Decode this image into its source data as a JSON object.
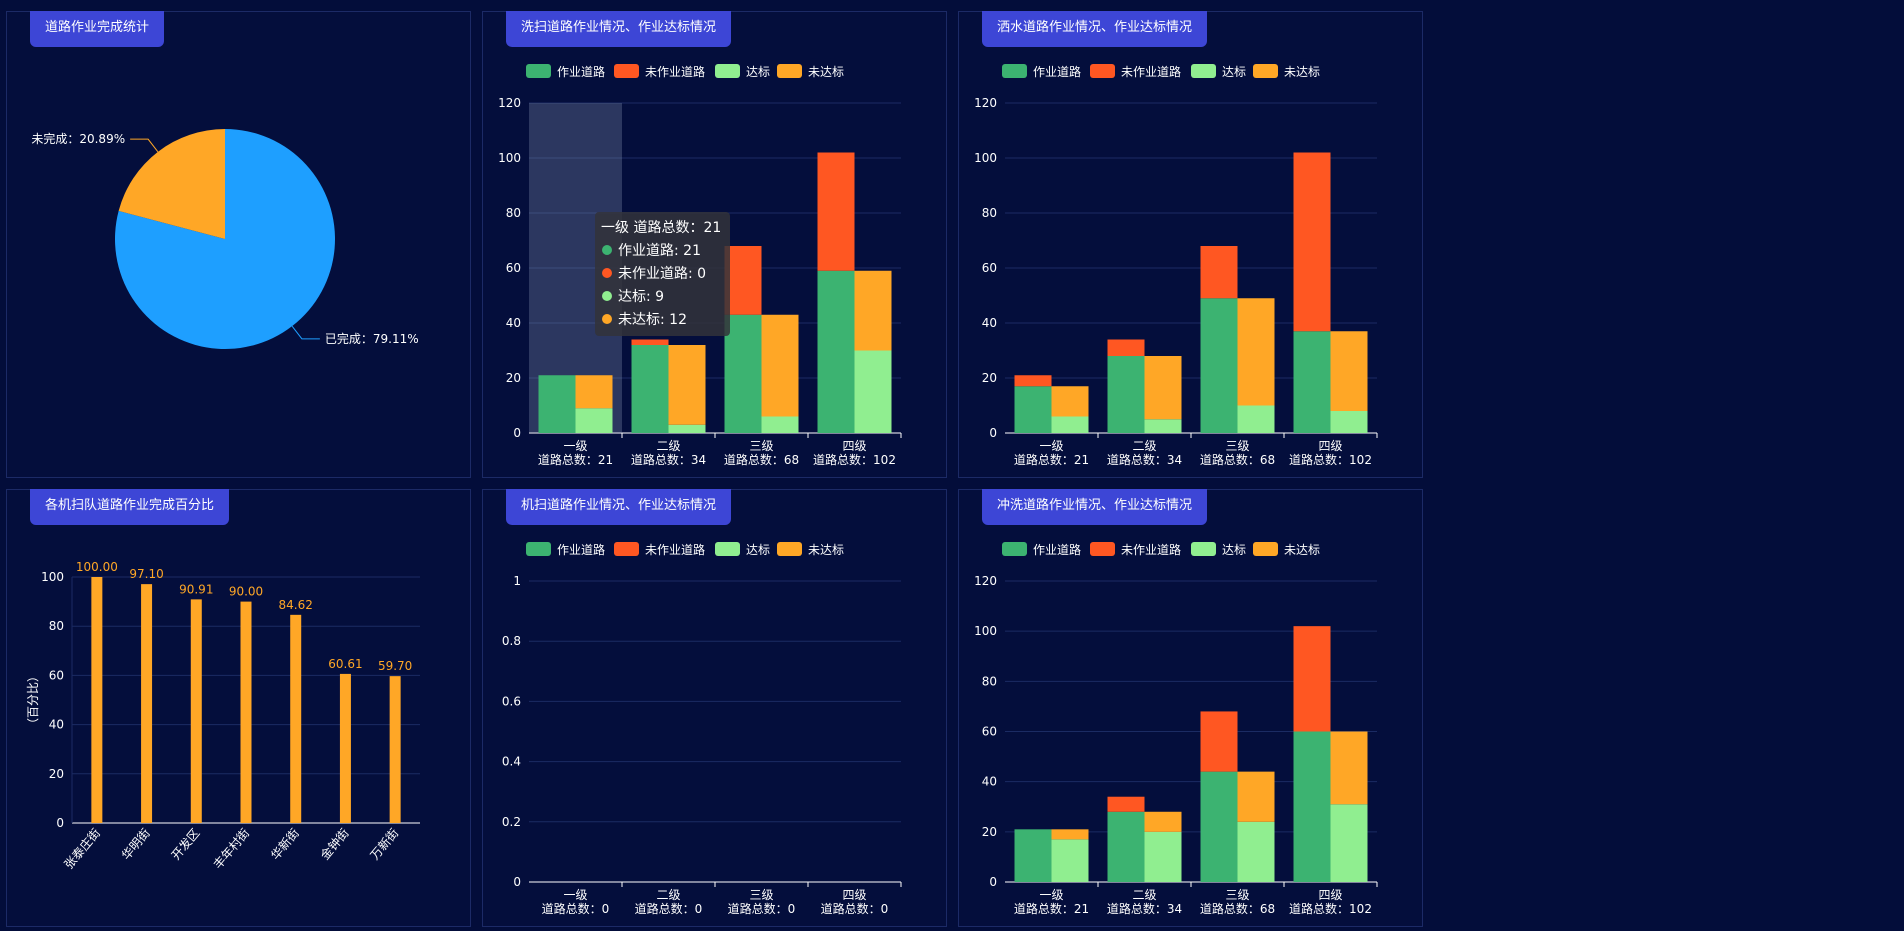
{
  "colors": {
    "work": "#3cb371",
    "nowork": "#ff5722",
    "pass": "#90ee90",
    "fail": "#ffa726",
    "pie_done": "#1e9fff",
    "pie_undone": "#ffa726",
    "axis": "#ffffff",
    "grid": "#1b2b63"
  },
  "legend": [
    "作业道路",
    "未作业道路",
    "达标",
    "未达标"
  ],
  "chart_data": [
    {
      "id": "pie",
      "type": "pie",
      "title": "道路作业完成统计",
      "slices": [
        {
          "name": "已完成",
          "value": 79.11,
          "label": "已完成：79.11%"
        },
        {
          "name": "未完成",
          "value": 20.89,
          "label": "未完成：20.89%"
        }
      ]
    },
    {
      "id": "sweep",
      "type": "bar",
      "title": "洗扫道路作业情况、作业达标情况",
      "categories": [
        "一级",
        "二级",
        "三级",
        "四级"
      ],
      "category_sub": [
        "道路总数：21",
        "道路总数：34",
        "道路总数：68",
        "道路总数：102"
      ],
      "ylim": [
        0,
        120
      ],
      "yticks": [
        "0",
        "20",
        "40",
        "60",
        "80",
        "100",
        "120"
      ],
      "stacks": [
        {
          "series": [
            {
              "name": "作业道路",
              "values": [
                21,
                32,
                43,
                59
              ]
            },
            {
              "name": "未作业道路",
              "values": [
                0,
                2,
                25,
                43
              ]
            }
          ]
        },
        {
          "series": [
            {
              "name": "达标",
              "values": [
                9,
                3,
                6,
                30
              ]
            },
            {
              "name": "未达标",
              "values": [
                12,
                29,
                37,
                29
              ]
            }
          ]
        }
      ],
      "highlight_index": 0,
      "tooltip": {
        "header": "一级 道路总数：21",
        "rows": [
          "作业道路: 21",
          "未作业道路: 0",
          "达标: 9",
          "未达标: 12"
        ]
      }
    },
    {
      "id": "water",
      "type": "bar",
      "title": "洒水道路作业情况、作业达标情况",
      "categories": [
        "一级",
        "二级",
        "三级",
        "四级"
      ],
      "category_sub": [
        "道路总数：21",
        "道路总数：34",
        "道路总数：68",
        "道路总数：102"
      ],
      "ylim": [
        0,
        120
      ],
      "yticks": [
        "0",
        "20",
        "40",
        "60",
        "80",
        "100",
        "120"
      ],
      "stacks": [
        {
          "series": [
            {
              "name": "作业道路",
              "values": [
                17,
                28,
                49,
                37
              ]
            },
            {
              "name": "未作业道路",
              "values": [
                4,
                6,
                19,
                65
              ]
            }
          ]
        },
        {
          "series": [
            {
              "name": "达标",
              "values": [
                6,
                5,
                10,
                8
              ]
            },
            {
              "name": "未达标",
              "values": [
                11,
                23,
                39,
                29
              ]
            }
          ]
        }
      ]
    },
    {
      "id": "team",
      "type": "bar",
      "title": "各机扫队道路作业完成百分比",
      "categories": [
        "张泰庄街",
        "华明街",
        "开发区",
        "丰年村街",
        "华新街",
        "金钟街",
        "万新街"
      ],
      "values": [
        100.0,
        97.1,
        90.91,
        90.0,
        84.62,
        60.61,
        59.7
      ],
      "value_labels": [
        "100.00",
        "97.10",
        "90.91",
        "90.00",
        "84.62",
        "60.61",
        "59.70"
      ],
      "ylabel": "（百分比）",
      "ylim": [
        0,
        100
      ],
      "yticks": [
        "0",
        "20",
        "40",
        "60",
        "80",
        "100"
      ]
    },
    {
      "id": "machine",
      "type": "bar",
      "title": "机扫道路作业情况、作业达标情况",
      "categories": [
        "一级",
        "二级",
        "三级",
        "四级"
      ],
      "category_sub": [
        "道路总数：0",
        "道路总数：0",
        "道路总数：0",
        "道路总数：0"
      ],
      "ylim": [
        0,
        1
      ],
      "yticks": [
        "0",
        "0.2",
        "0.4",
        "0.6",
        "0.8",
        "1"
      ],
      "stacks": [
        {
          "series": [
            {
              "name": "作业道路",
              "values": [
                0,
                0,
                0,
                0
              ]
            },
            {
              "name": "未作业道路",
              "values": [
                0,
                0,
                0,
                0
              ]
            }
          ]
        },
        {
          "series": [
            {
              "name": "达标",
              "values": [
                0,
                0,
                0,
                0
              ]
            },
            {
              "name": "未达标",
              "values": [
                0,
                0,
                0,
                0
              ]
            }
          ]
        }
      ]
    },
    {
      "id": "flush",
      "type": "bar",
      "title": "冲洗道路作业情况、作业达标情况",
      "categories": [
        "一级",
        "二级",
        "三级",
        "四级"
      ],
      "category_sub": [
        "道路总数：21",
        "道路总数：34",
        "道路总数：68",
        "道路总数：102"
      ],
      "ylim": [
        0,
        120
      ],
      "yticks": [
        "0",
        "20",
        "40",
        "60",
        "80",
        "100",
        "120"
      ],
      "stacks": [
        {
          "series": [
            {
              "name": "作业道路",
              "values": [
                21,
                28,
                44,
                60
              ]
            },
            {
              "name": "未作业道路",
              "values": [
                0,
                6,
                24,
                42
              ]
            }
          ]
        },
        {
          "series": [
            {
              "name": "达标",
              "values": [
                17,
                20,
                24,
                31
              ]
            },
            {
              "name": "未达标",
              "values": [
                4,
                8,
                20,
                29
              ]
            }
          ]
        }
      ]
    }
  ]
}
